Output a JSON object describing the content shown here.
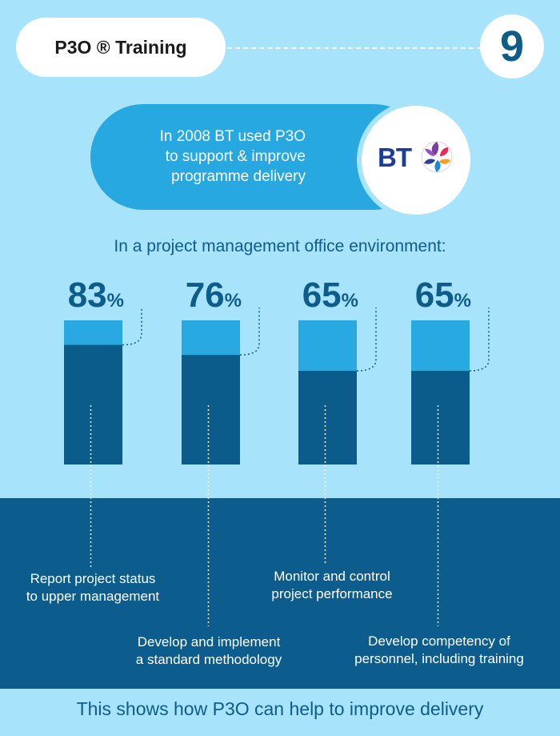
{
  "header": {
    "title": "P3O ® Training",
    "number": "9"
  },
  "intro": {
    "text": "In 2008 BT used P3O\nto support & improve\nprogramme delivery",
    "logo_text": "BT"
  },
  "subtitle": "In a project management office environment:",
  "footer": "This shows how P3O can help to improve delivery",
  "colors": {
    "background": "#a7e4fb",
    "light_bar": "#29a9e1",
    "dark_bar": "#0b5b8b",
    "text_dark": "#0e5c8a"
  },
  "chart_data": {
    "type": "bar",
    "categories": [
      "Report project status\nto upper management",
      "Develop and implement\na standard methodology",
      "Monitor and control\nproject performance",
      "Develop competency of\npersonnel, including training"
    ],
    "values": [
      83,
      76,
      65,
      65
    ],
    "value_labels": [
      "83",
      "76",
      "65",
      "65"
    ],
    "unit": "%",
    "ylim": [
      0,
      100
    ]
  }
}
